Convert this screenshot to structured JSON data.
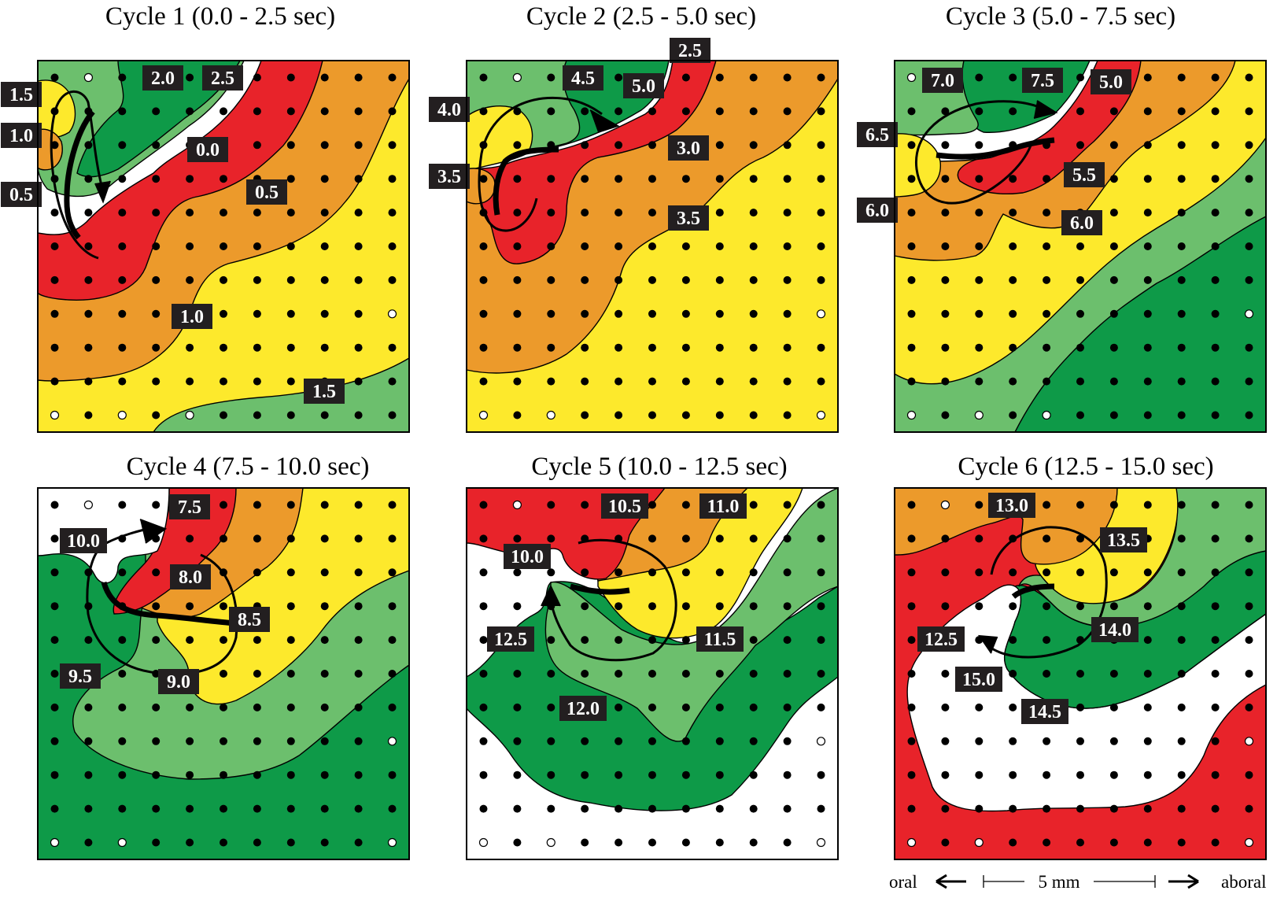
{
  "colors": {
    "white": "#ffffff",
    "red": "#e8232a",
    "orange": "#ec9a2b",
    "yellow": "#fde92c",
    "light_green": "#6cbf6d",
    "dark_green": "#0e9a48",
    "label_bg": "#231f20"
  },
  "panels": [
    {
      "title": "Cycle 1 (0.0 - 2.5 sec)",
      "labels": [
        "0.0",
        "0.5",
        "1.0",
        "1.5",
        "2.0",
        "2.5",
        "0.5",
        "1.0",
        "1.5"
      ]
    },
    {
      "title": "Cycle 2 (2.5 - 5.0 sec)",
      "labels": [
        "2.5",
        "3.0",
        "3.5",
        "4.0",
        "4.5",
        "5.0",
        "3.5"
      ]
    },
    {
      "title": "Cycle 3 (5.0 - 7.5 sec)",
      "labels": [
        "5.0",
        "5.5",
        "6.0",
        "6.5",
        "7.0",
        "7.5",
        "6.0"
      ]
    },
    {
      "title": "Cycle 4 (7.5 - 10.0 sec)",
      "labels": [
        "7.5",
        "8.0",
        "8.5",
        "9.0",
        "9.5",
        "10.0"
      ]
    },
    {
      "title": "Cycle 5 (10.0 - 12.5 sec)",
      "labels": [
        "10.0",
        "10.5",
        "11.0",
        "11.5",
        "12.0",
        "12.5"
      ]
    },
    {
      "title": "Cycle 6 (12.5 - 15.0 sec)",
      "labels": [
        "12.5",
        "13.0",
        "13.5",
        "14.0",
        "14.5",
        "15.0"
      ]
    }
  ],
  "footer": {
    "oral": "oral",
    "scale": "5 mm",
    "aboral": "aboral"
  }
}
